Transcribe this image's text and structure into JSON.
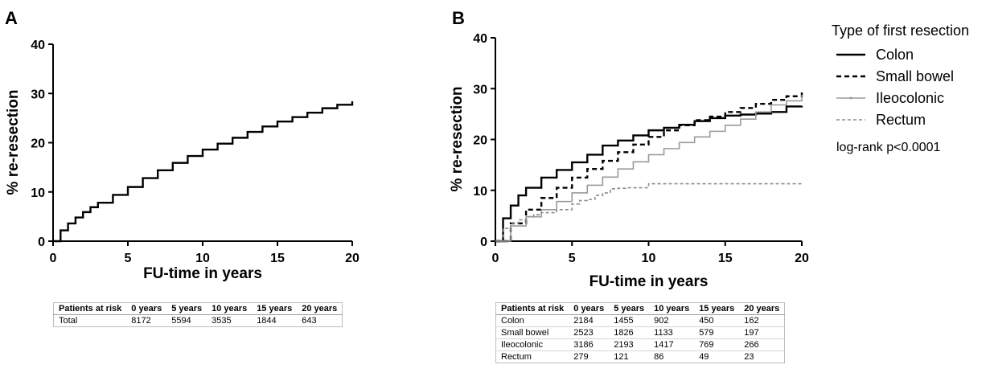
{
  "chart_data": [
    {
      "panel": "A",
      "type": "line",
      "xlabel": "FU-time in years",
      "ylabel": "% re-resection",
      "xlim": [
        0,
        20
      ],
      "ylim": [
        0,
        40
      ],
      "xticks": [
        "0",
        "5",
        "10",
        "15",
        "20"
      ],
      "yticks": [
        "0",
        "10",
        "20",
        "30",
        "40"
      ],
      "grid": false,
      "series": [
        {
          "x": [
            0,
            0.5,
            1,
            1.5,
            2,
            2.5,
            3,
            4,
            5,
            6,
            7,
            8,
            9,
            10,
            11,
            12,
            13,
            14,
            15,
            16,
            17,
            18,
            19,
            20
          ],
          "y": [
            0,
            2.2,
            3.6,
            4.8,
            5.9,
            6.9,
            7.8,
            9.4,
            11.0,
            12.8,
            14.4,
            15.9,
            17.3,
            18.6,
            19.8,
            21.0,
            22.2,
            23.3,
            24.3,
            25.2,
            26.1,
            27.0,
            27.7,
            28.4
          ],
          "color": "#000000",
          "dash": "solid"
        }
      ],
      "risk_table": {
        "headers": [
          "Patients at risk",
          "0 years",
          "5 years",
          "10 years",
          "15 years",
          "20 years"
        ],
        "rows": [
          [
            "Total",
            "8172",
            "5594",
            "3535",
            "1844",
            "643"
          ]
        ]
      }
    },
    {
      "panel": "B",
      "type": "line",
      "xlabel": "FU-time in years",
      "ylabel": "% re-resection",
      "xlim": [
        0,
        20
      ],
      "ylim": [
        0,
        40
      ],
      "xticks": [
        "0",
        "5",
        "10",
        "15",
        "20"
      ],
      "yticks": [
        "0",
        "10",
        "20",
        "30",
        "40"
      ],
      "grid": false,
      "legend_title": "Type of first resection",
      "legend_placement": "right",
      "annotation": "log-rank p<0.0001",
      "series": [
        {
          "name": "Colon",
          "x": [
            0,
            0.5,
            1,
            1.5,
            2,
            3,
            4,
            5,
            6,
            7,
            8,
            9,
            10,
            11,
            12,
            13,
            14,
            15,
            16,
            17,
            18,
            19,
            20
          ],
          "y": [
            0,
            4.5,
            7.0,
            9.0,
            10.5,
            12.5,
            14.0,
            15.5,
            17.0,
            18.8,
            19.8,
            20.8,
            21.8,
            22.3,
            22.9,
            23.6,
            24.2,
            24.7,
            24.9,
            25.1,
            25.4,
            26.5,
            26.6
          ],
          "color": "#000000",
          "dash": "solid"
        },
        {
          "name": "Small bowel",
          "x": [
            0,
            1,
            2,
            3,
            4,
            5,
            6,
            7,
            8,
            9,
            10,
            11,
            12,
            13,
            14,
            15,
            16,
            17,
            18,
            19,
            20
          ],
          "y": [
            0,
            3.5,
            6.2,
            8.5,
            10.5,
            12.5,
            14.2,
            15.8,
            17.5,
            19.0,
            20.5,
            21.8,
            22.8,
            23.8,
            24.5,
            25.4,
            26.2,
            27.0,
            27.8,
            28.5,
            29.4
          ],
          "color": "#000000",
          "dash": "6,4"
        },
        {
          "name": "Ileocolonic",
          "x": [
            0,
            1,
            2,
            3,
            4,
            5,
            6,
            7,
            8,
            9,
            10,
            11,
            12,
            13,
            14,
            15,
            16,
            17,
            18,
            19,
            20
          ],
          "y": [
            0,
            3.0,
            4.8,
            6.2,
            7.8,
            9.5,
            11.0,
            12.6,
            14.2,
            15.6,
            17.0,
            18.2,
            19.4,
            20.5,
            21.6,
            22.8,
            24.0,
            25.4,
            26.8,
            27.6,
            28.8
          ],
          "color": "#9a9a9a",
          "dash": "solid"
        },
        {
          "name": "Rectum",
          "x": [
            0,
            0.5,
            1,
            1.5,
            2,
            2.5,
            3,
            4,
            5,
            5.5,
            6,
            6.5,
            7,
            7.5,
            8,
            8.5,
            10,
            10.5,
            20
          ],
          "y": [
            0,
            2.5,
            3.5,
            4.2,
            4.8,
            5.2,
            5.6,
            6.2,
            7.3,
            8.0,
            8.2,
            9.0,
            9.5,
            10.3,
            10.4,
            10.5,
            11.3,
            11.3,
            11.3
          ],
          "color": "#8c8c8c",
          "dash": "4,3"
        }
      ],
      "risk_table": {
        "headers": [
          "Patients at risk",
          "0 years",
          "5 years",
          "10 years",
          "15 years",
          "20 years"
        ],
        "rows": [
          [
            "Colon",
            "2184",
            "1455",
            "902",
            "450",
            "162"
          ],
          [
            "Small bowel",
            "2523",
            "1826",
            "1133",
            "579",
            "197"
          ],
          [
            "Ileocolonic",
            "3186",
            "2193",
            "1417",
            "769",
            "266"
          ],
          [
            "Rectum",
            "279",
            "121",
            "86",
            "49",
            "23"
          ]
        ]
      }
    }
  ]
}
